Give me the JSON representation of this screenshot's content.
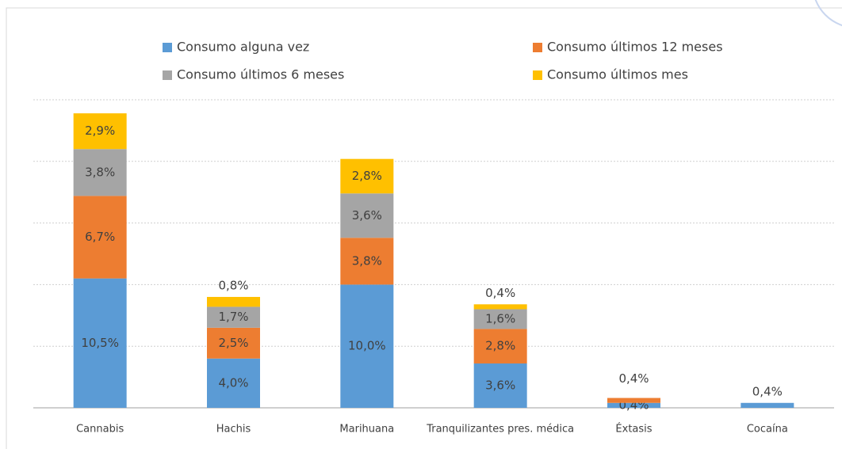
{
  "chart_data": {
    "type": "stacked_bar",
    "categories": [
      "Cannabis",
      "Hachis",
      "Marihuana",
      "Tranquilizantes pres. médica",
      "Éxtasis",
      "Cocaína"
    ],
    "series": [
      {
        "name": "Consumo alguna vez",
        "color": "#5b9bd5",
        "values": [
          10.5,
          4.0,
          10.0,
          3.6,
          0.4,
          0.4
        ],
        "value_labels": [
          "10,5%",
          "4,0%",
          "10,0%",
          "3,6%",
          "0,4%",
          "0,4%"
        ]
      },
      {
        "name": "Consumo últimos 12  meses",
        "color": "#ed7d31",
        "values": [
          6.7,
          2.5,
          3.8,
          2.8,
          0.4,
          null
        ],
        "value_labels": [
          "6,7%",
          "2,5%",
          "3,8%",
          "2,8%",
          "0,4%",
          null
        ]
      },
      {
        "name": "Consumo últimos 6 meses",
        "color": "#a5a5a5",
        "values": [
          3.8,
          1.7,
          3.6,
          1.6,
          null,
          null
        ],
        "value_labels": [
          "3,8%",
          "1,7%",
          "3,6%",
          "1,6%",
          null,
          null
        ]
      },
      {
        "name": "Consumo últimos mes",
        "color": "#ffc000",
        "values": [
          2.9,
          0.8,
          2.8,
          0.4,
          null,
          null
        ],
        "value_labels": [
          "2,9%",
          "0,8%",
          "2,8%",
          "0,4%",
          null,
          null
        ]
      }
    ],
    "ylim": [
      0,
      25
    ],
    "yticks": [
      0,
      5,
      10,
      15,
      20,
      25
    ],
    "grid": true
  }
}
